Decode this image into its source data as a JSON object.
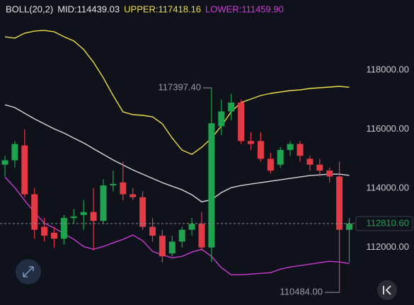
{
  "chart_data": {
    "type": "candlestick",
    "header": [
      {
        "text": "BOLL(20,2)",
        "color": "#e6e6e6"
      },
      {
        "text": "MID:114439.03",
        "color": "#e6e6e6"
      },
      {
        "text": "UPPER:117418.16",
        "color": "#f0dc4a"
      },
      {
        "text": "LOWER:111459.90",
        "color": "#d23bd8"
      }
    ],
    "ylim": [
      110200,
      119650
    ],
    "yticks": [
      {
        "value": 118000,
        "label": "118000.00"
      },
      {
        "value": 116000,
        "label": "116000.00"
      },
      {
        "value": 114000,
        "label": "114000.00"
      },
      {
        "value": 112000,
        "label": "112000.00"
      }
    ],
    "up_color": "#1fa34e",
    "down_color": "#e23b46",
    "candles": {
      "open": [
        114800,
        114950,
        115450,
        113800,
        112700,
        112500,
        112300,
        113000,
        113100,
        113200,
        112900,
        114100,
        114200,
        113800,
        113700,
        112700,
        112400,
        111800,
        112200,
        112600,
        112800,
        112000,
        116100,
        116600,
        116900,
        115600,
        115600,
        115000,
        114800,
        115300,
        115500,
        115000,
        114800,
        114600,
        114400,
        112600
      ],
      "high": [
        115100,
        115600,
        116000,
        114000,
        113000,
        112700,
        113100,
        113300,
        113600,
        114000,
        114300,
        114600,
        114900,
        114000,
        113900,
        113000,
        112600,
        112400,
        112700,
        113000,
        113200,
        117397.4,
        117000,
        117200,
        117000,
        115900,
        115900,
        115200,
        115400,
        115600,
        115600,
        115100,
        115000,
        114700,
        114900,
        113000
      ],
      "low": [
        114400,
        114700,
        113700,
        112300,
        112200,
        112000,
        112100,
        112800,
        112600,
        111900,
        112800,
        113900,
        113600,
        113600,
        112600,
        112200,
        111500,
        111700,
        112000,
        112400,
        111900,
        111500,
        115800,
        116300,
        115500,
        115300,
        114900,
        114500,
        114700,
        115100,
        114900,
        114600,
        114400,
        114200,
        110484,
        111500
      ],
      "close": [
        114950,
        115500,
        113800,
        112600,
        112400,
        112300,
        113000,
        113050,
        113200,
        112900,
        114100,
        114150,
        113800,
        113700,
        112700,
        112400,
        111700,
        112200,
        112600,
        112800,
        112000,
        116200,
        116600,
        116900,
        115600,
        115500,
        115000,
        114600,
        115300,
        115500,
        115100,
        114800,
        114600,
        114400,
        112600,
        112810.6
      ]
    },
    "bands": [
      {
        "color": "#f0dc4a",
        "values": [
          119126,
          119078,
          119245,
          119317,
          119341,
          119293,
          119126,
          118982,
          118695,
          118264,
          117737,
          117138,
          116587,
          116491,
          116467,
          116419,
          116180,
          115701,
          115294,
          115150,
          115390,
          115701,
          116108,
          116587,
          116898,
          117018,
          117138,
          117210,
          117258,
          117306,
          117330,
          117377,
          117401,
          117425,
          117449,
          117418.16
        ]
      },
      {
        "color": "#d9d9dc",
        "values": [
          116826,
          116731,
          116539,
          116348,
          116180,
          116012,
          115869,
          115701,
          115534,
          115342,
          115150,
          114958,
          114791,
          114623,
          114479,
          114336,
          114192,
          114072,
          113952,
          113785,
          113545,
          113617,
          113857,
          114024,
          114096,
          114144,
          114192,
          114240,
          114288,
          114336,
          114384,
          114431,
          114455,
          114479,
          114479,
          114439.03
        ]
      },
      {
        "color": "#c93ad4",
        "values": [
          114384,
          114024,
          113593,
          113186,
          112826,
          112659,
          112467,
          112276,
          112036,
          111940,
          112036,
          112156,
          112276,
          112419,
          112228,
          111869,
          111749,
          111653,
          111701,
          111845,
          111940,
          111701,
          111318,
          111078,
          111078,
          111102,
          111126,
          111150,
          111270,
          111342,
          111390,
          111438,
          111486,
          111534,
          111510,
          111459.9
        ]
      }
    ],
    "price_line": {
      "value": 112810.6,
      "label": "112810.60"
    },
    "high_label": {
      "value": 117397.4,
      "label": "117397.40"
    },
    "low_label": {
      "value": 110484,
      "label": "110484.00"
    }
  }
}
